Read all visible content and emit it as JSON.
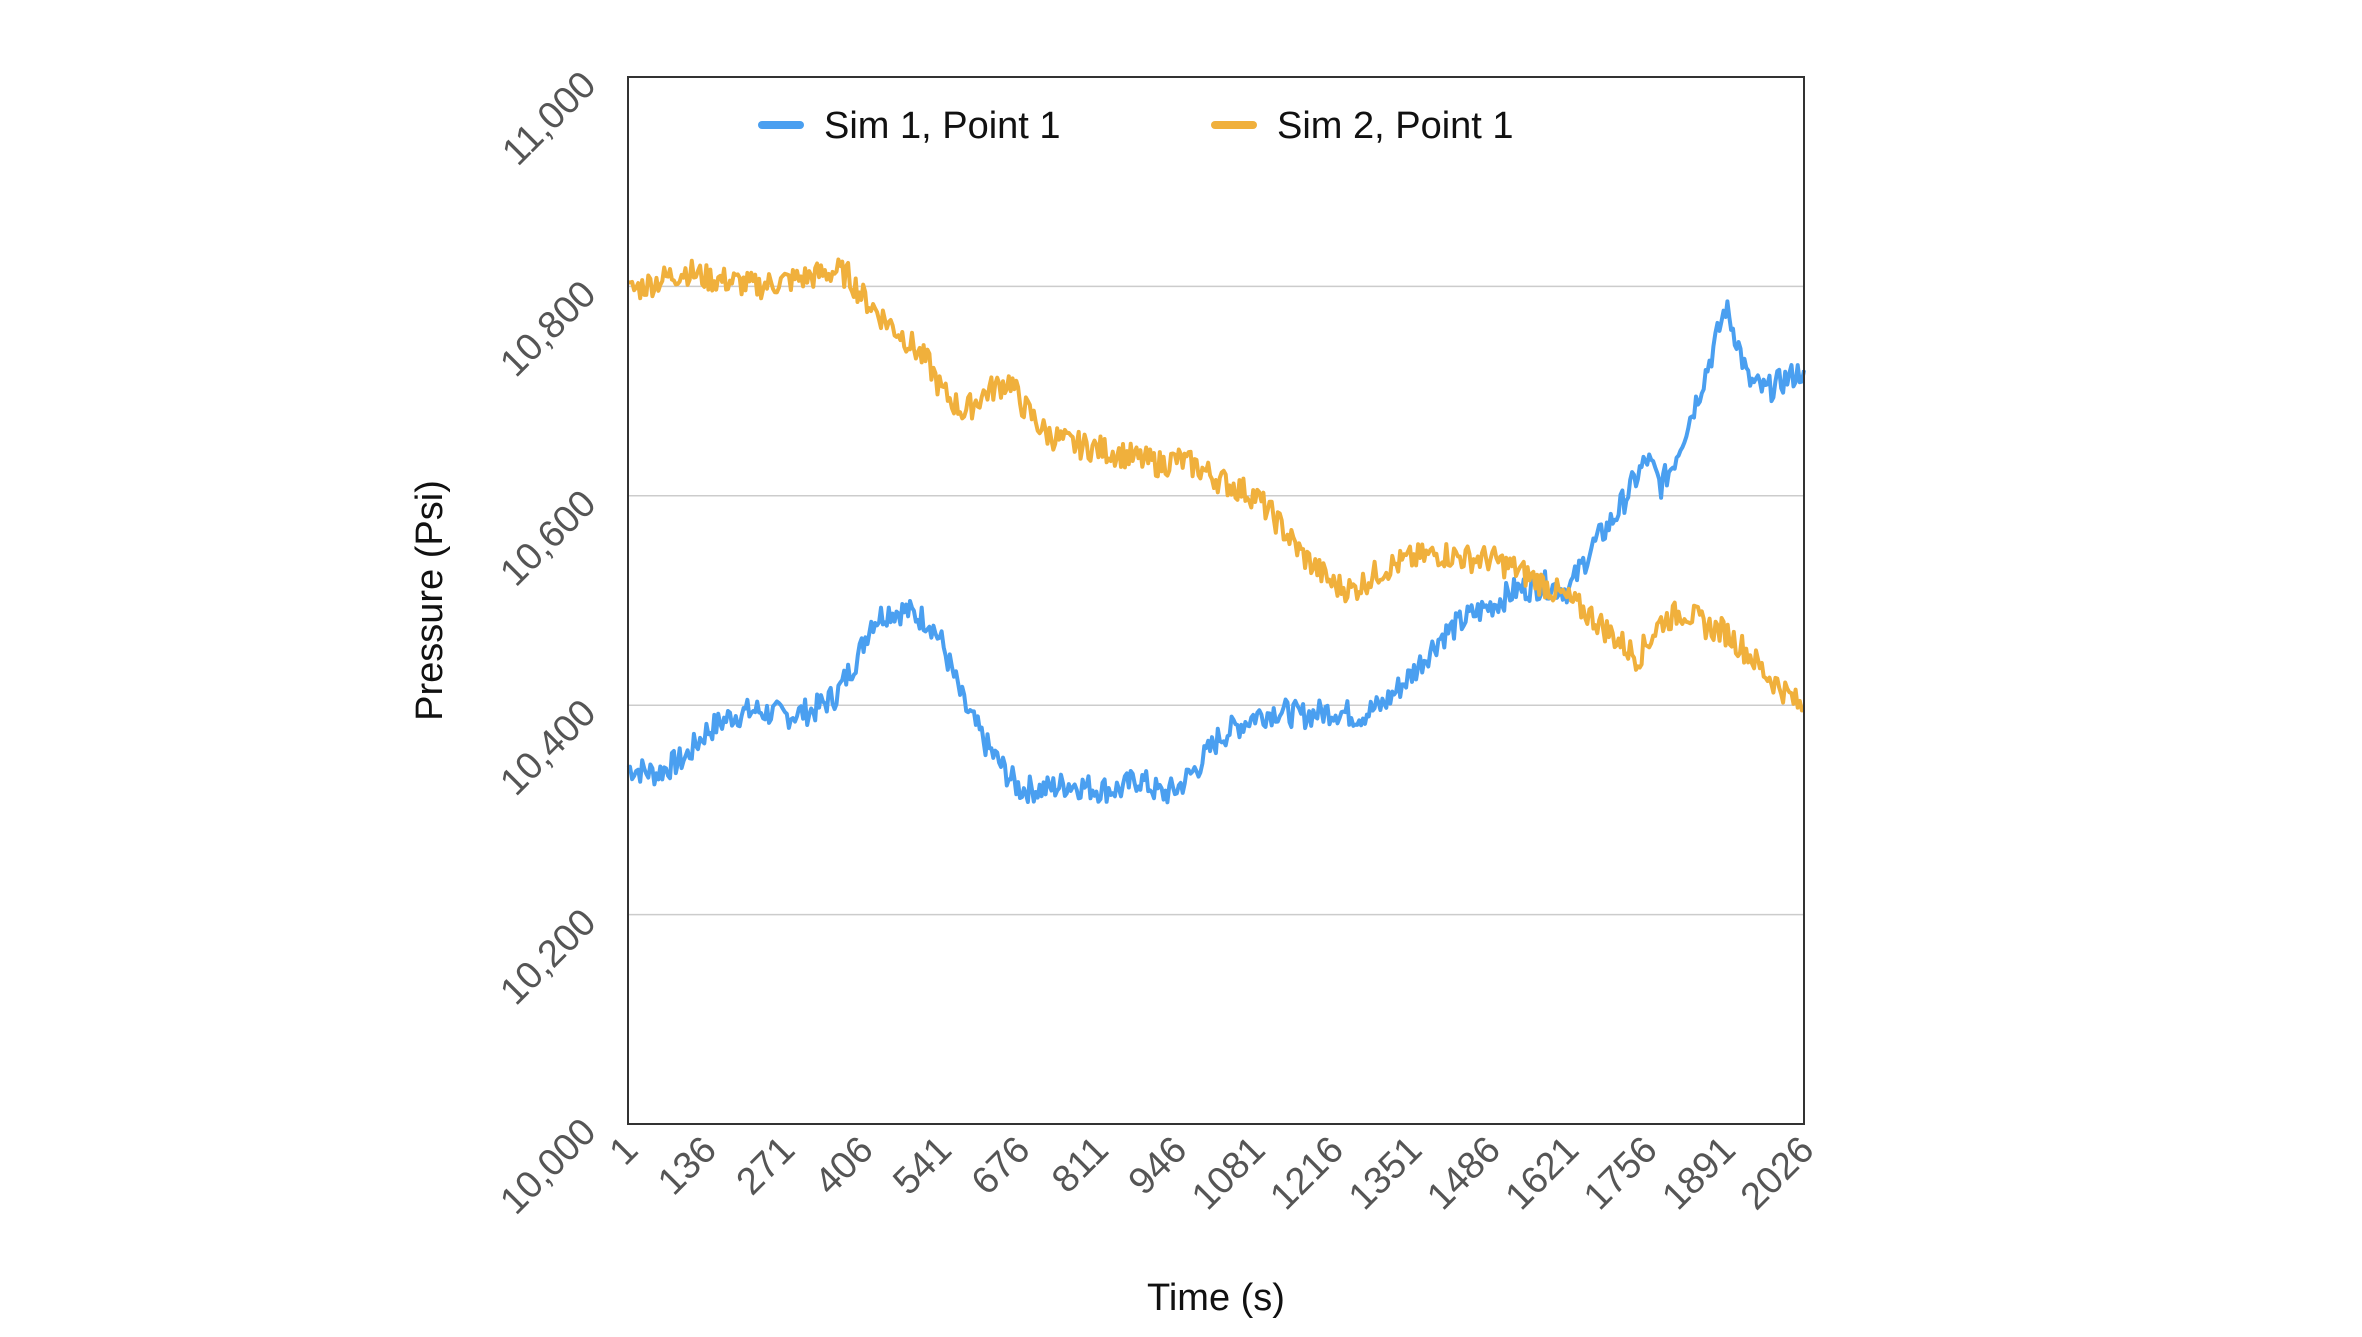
{
  "chart_data": {
    "type": "line",
    "xlabel": "Time (s)",
    "ylabel": "Pressure (Psi)",
    "ylim": [
      10000,
      11000
    ],
    "xlim": [
      1,
      2026
    ],
    "x_ticks": [
      "1",
      "136",
      "271",
      "406",
      "541",
      "676",
      "811",
      "946",
      "1081",
      "1216",
      "1351",
      "1486",
      "1621",
      "1756",
      "1891",
      "2026"
    ],
    "y_ticks": [
      {
        "value": 10000,
        "label": "10,000"
      },
      {
        "value": 10200,
        "label": "10,200"
      },
      {
        "value": 10400,
        "label": "10,400"
      },
      {
        "value": 10600,
        "label": "10,600"
      },
      {
        "value": 10800,
        "label": "10,800"
      },
      {
        "value": 11000,
        "label": "11,000"
      }
    ],
    "grid": "horizontal",
    "legend_position": "top",
    "series": [
      {
        "name": "Sim 1, Point 1",
        "color": "#4a9ff0",
        "x": [
          1,
          50,
          100,
          136,
          180,
          220,
          271,
          320,
          360,
          400,
          420,
          450,
          480,
          520,
          541,
          580,
          620,
          660,
          676,
          720,
          760,
          811,
          850,
          880,
          920,
          946,
          980,
          1020,
          1081,
          1120,
          1160,
          1216,
          1260,
          1300,
          1351,
          1400,
          1450,
          1486,
          1530,
          1580,
          1621,
          1660,
          1700,
          1740,
          1756,
          1780,
          1800,
          1840,
          1870,
          1891,
          1910,
          1930,
          1960,
          1990,
          2026
        ],
        "y": [
          10340,
          10335,
          10350,
          10375,
          10390,
          10395,
          10390,
          10395,
          10410,
          10450,
          10480,
          10490,
          10490,
          10480,
          10460,
          10400,
          10360,
          10330,
          10320,
          10320,
          10325,
          10320,
          10320,
          10330,
          10315,
          10320,
          10340,
          10370,
          10390,
          10395,
          10390,
          10395,
          10390,
          10400,
          10430,
          10465,
          10485,
          10495,
          10510,
          10515,
          10510,
          10550,
          10580,
          10620,
          10635,
          10610,
          10630,
          10690,
          10740,
          10780,
          10750,
          10710,
          10700,
          10710,
          10720
        ]
      },
      {
        "name": "Sim 2, Point 1",
        "color": "#f0b03c",
        "x": [
          1,
          50,
          100,
          136,
          180,
          220,
          271,
          320,
          360,
          380,
          406,
          440,
          480,
          520,
          541,
          580,
          620,
          660,
          676,
          720,
          760,
          811,
          850,
          880,
          920,
          946,
          980,
          1020,
          1081,
          1120,
          1160,
          1216,
          1250,
          1300,
          1351,
          1400,
          1450,
          1486,
          1530,
          1580,
          1621,
          1660,
          1700,
          1740,
          1756,
          1780,
          1820,
          1860,
          1891,
          1930,
          1960,
          1990,
          2026
        ],
        "y": [
          10795,
          10805,
          10815,
          10808,
          10805,
          10800,
          10805,
          10810,
          10815,
          10810,
          10790,
          10770,
          10750,
          10725,
          10700,
          10680,
          10700,
          10710,
          10690,
          10660,
          10650,
          10645,
          10640,
          10635,
          10630,
          10635,
          10628,
          10615,
          10600,
          10575,
          10545,
          10515,
          10510,
          10530,
          10540,
          10545,
          10540,
          10540,
          10530,
          10515,
          10500,
          10485,
          10465,
          10445,
          10460,
          10480,
          10490,
          10475,
          10470,
          10450,
          10430,
          10415,
          10395
        ]
      }
    ]
  }
}
